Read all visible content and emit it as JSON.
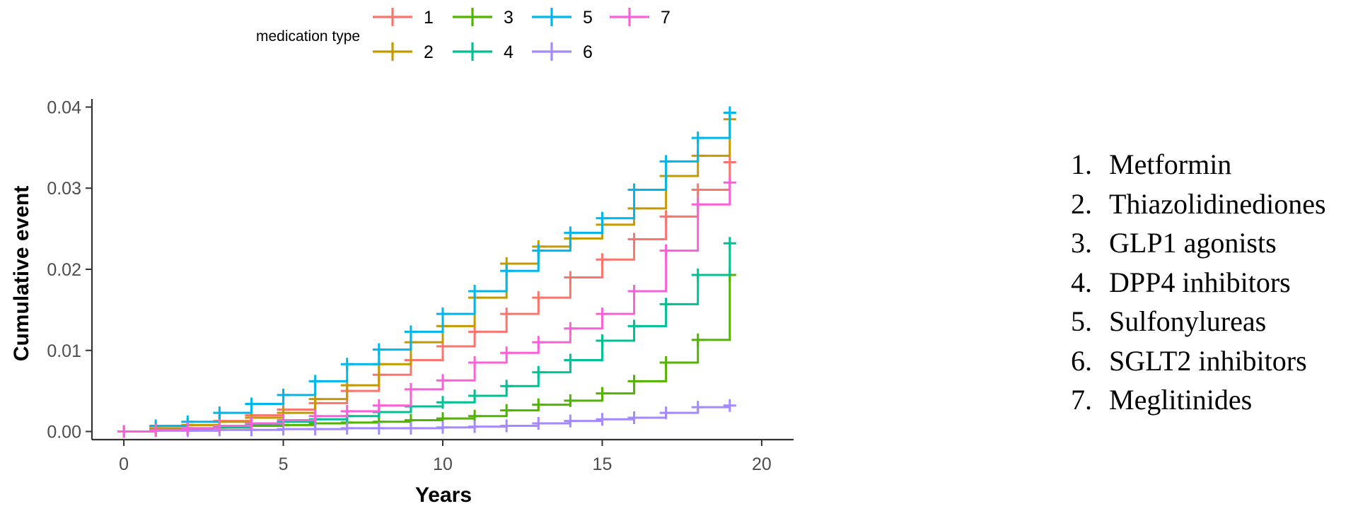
{
  "legend": {
    "title": "medication type"
  },
  "medications": [
    {
      "num": "1.",
      "name": "Metformin"
    },
    {
      "num": "2.",
      "name": "Thiazolidinediones"
    },
    {
      "num": "3.",
      "name": "GLP1 agonists"
    },
    {
      "num": "4.",
      "name": "DPP4 inhibitors"
    },
    {
      "num": "5.",
      "name": "Sulfonylureas"
    },
    {
      "num": "6.",
      "name": "SGLT2 inhibitors"
    },
    {
      "num": "7.",
      "name": "Meglitinides"
    }
  ],
  "chart_data": {
    "type": "line",
    "step": true,
    "xlabel": "Years",
    "ylabel": "Cumulative event",
    "xlim": [
      -1,
      21
    ],
    "ylim": [
      -0.001,
      0.041
    ],
    "xticks": [
      "0",
      "5",
      "10",
      "15",
      "20"
    ],
    "yticks": [
      "0.00",
      "0.01",
      "0.02",
      "0.03",
      "0.04"
    ],
    "grid": false,
    "legend_position": "top",
    "x": [
      0,
      1,
      2,
      3,
      4,
      5,
      6,
      7,
      8,
      9,
      10,
      11,
      12,
      13,
      14,
      15,
      16,
      17,
      18,
      19
    ],
    "series": [
      {
        "name": "1",
        "color": "#F8766D",
        "values": [
          0,
          0.0004,
          0.0008,
          0.0013,
          0.002,
          0.0027,
          0.0035,
          0.005,
          0.007,
          0.0088,
          0.0105,
          0.0123,
          0.0145,
          0.0165,
          0.019,
          0.0212,
          0.0237,
          0.0265,
          0.0298,
          0.0332
        ]
      },
      {
        "name": "2",
        "color": "#C49A00",
        "values": [
          0,
          0.0004,
          0.0008,
          0.0012,
          0.0017,
          0.0023,
          0.004,
          0.0057,
          0.0083,
          0.011,
          0.013,
          0.0165,
          0.0207,
          0.0228,
          0.0238,
          0.0255,
          0.0275,
          0.0315,
          0.034,
          0.0385
        ]
      },
      {
        "name": "3",
        "color": "#53B400",
        "values": [
          0,
          0.0002,
          0.0003,
          0.0005,
          0.0007,
          0.0008,
          0.001,
          0.0011,
          0.0012,
          0.0014,
          0.0016,
          0.0019,
          0.0026,
          0.0033,
          0.0038,
          0.0047,
          0.0062,
          0.0085,
          0.0113,
          0.0193
        ]
      },
      {
        "name": "4",
        "color": "#00C094",
        "values": [
          0,
          0.0002,
          0.0004,
          0.0006,
          0.0009,
          0.0012,
          0.0015,
          0.0019,
          0.0024,
          0.0031,
          0.0036,
          0.0044,
          0.0056,
          0.0073,
          0.0088,
          0.0112,
          0.013,
          0.0157,
          0.0193,
          0.0232
        ]
      },
      {
        "name": "5",
        "color": "#00B6EB",
        "values": [
          0,
          0.0007,
          0.0012,
          0.0023,
          0.0034,
          0.0045,
          0.0062,
          0.0083,
          0.0101,
          0.0123,
          0.0145,
          0.0173,
          0.0198,
          0.0223,
          0.0245,
          0.0263,
          0.0298,
          0.0333,
          0.0362,
          0.0393
        ]
      },
      {
        "name": "6",
        "color": "#A58AFF",
        "values": [
          0,
          0.0001,
          0.0001,
          0.0002,
          0.0002,
          0.0003,
          0.0003,
          0.0004,
          0.0004,
          0.0004,
          0.0005,
          0.0006,
          0.0007,
          0.001,
          0.0013,
          0.0015,
          0.0017,
          0.0023,
          0.003,
          0.0032
        ]
      },
      {
        "name": "7",
        "color": "#FB61D7",
        "values": [
          0,
          0.0002,
          0.0004,
          0.0007,
          0.001,
          0.0014,
          0.0019,
          0.0025,
          0.0032,
          0.0052,
          0.0063,
          0.0085,
          0.0097,
          0.011,
          0.0127,
          0.0145,
          0.0173,
          0.0223,
          0.028,
          0.0307
        ]
      }
    ]
  }
}
